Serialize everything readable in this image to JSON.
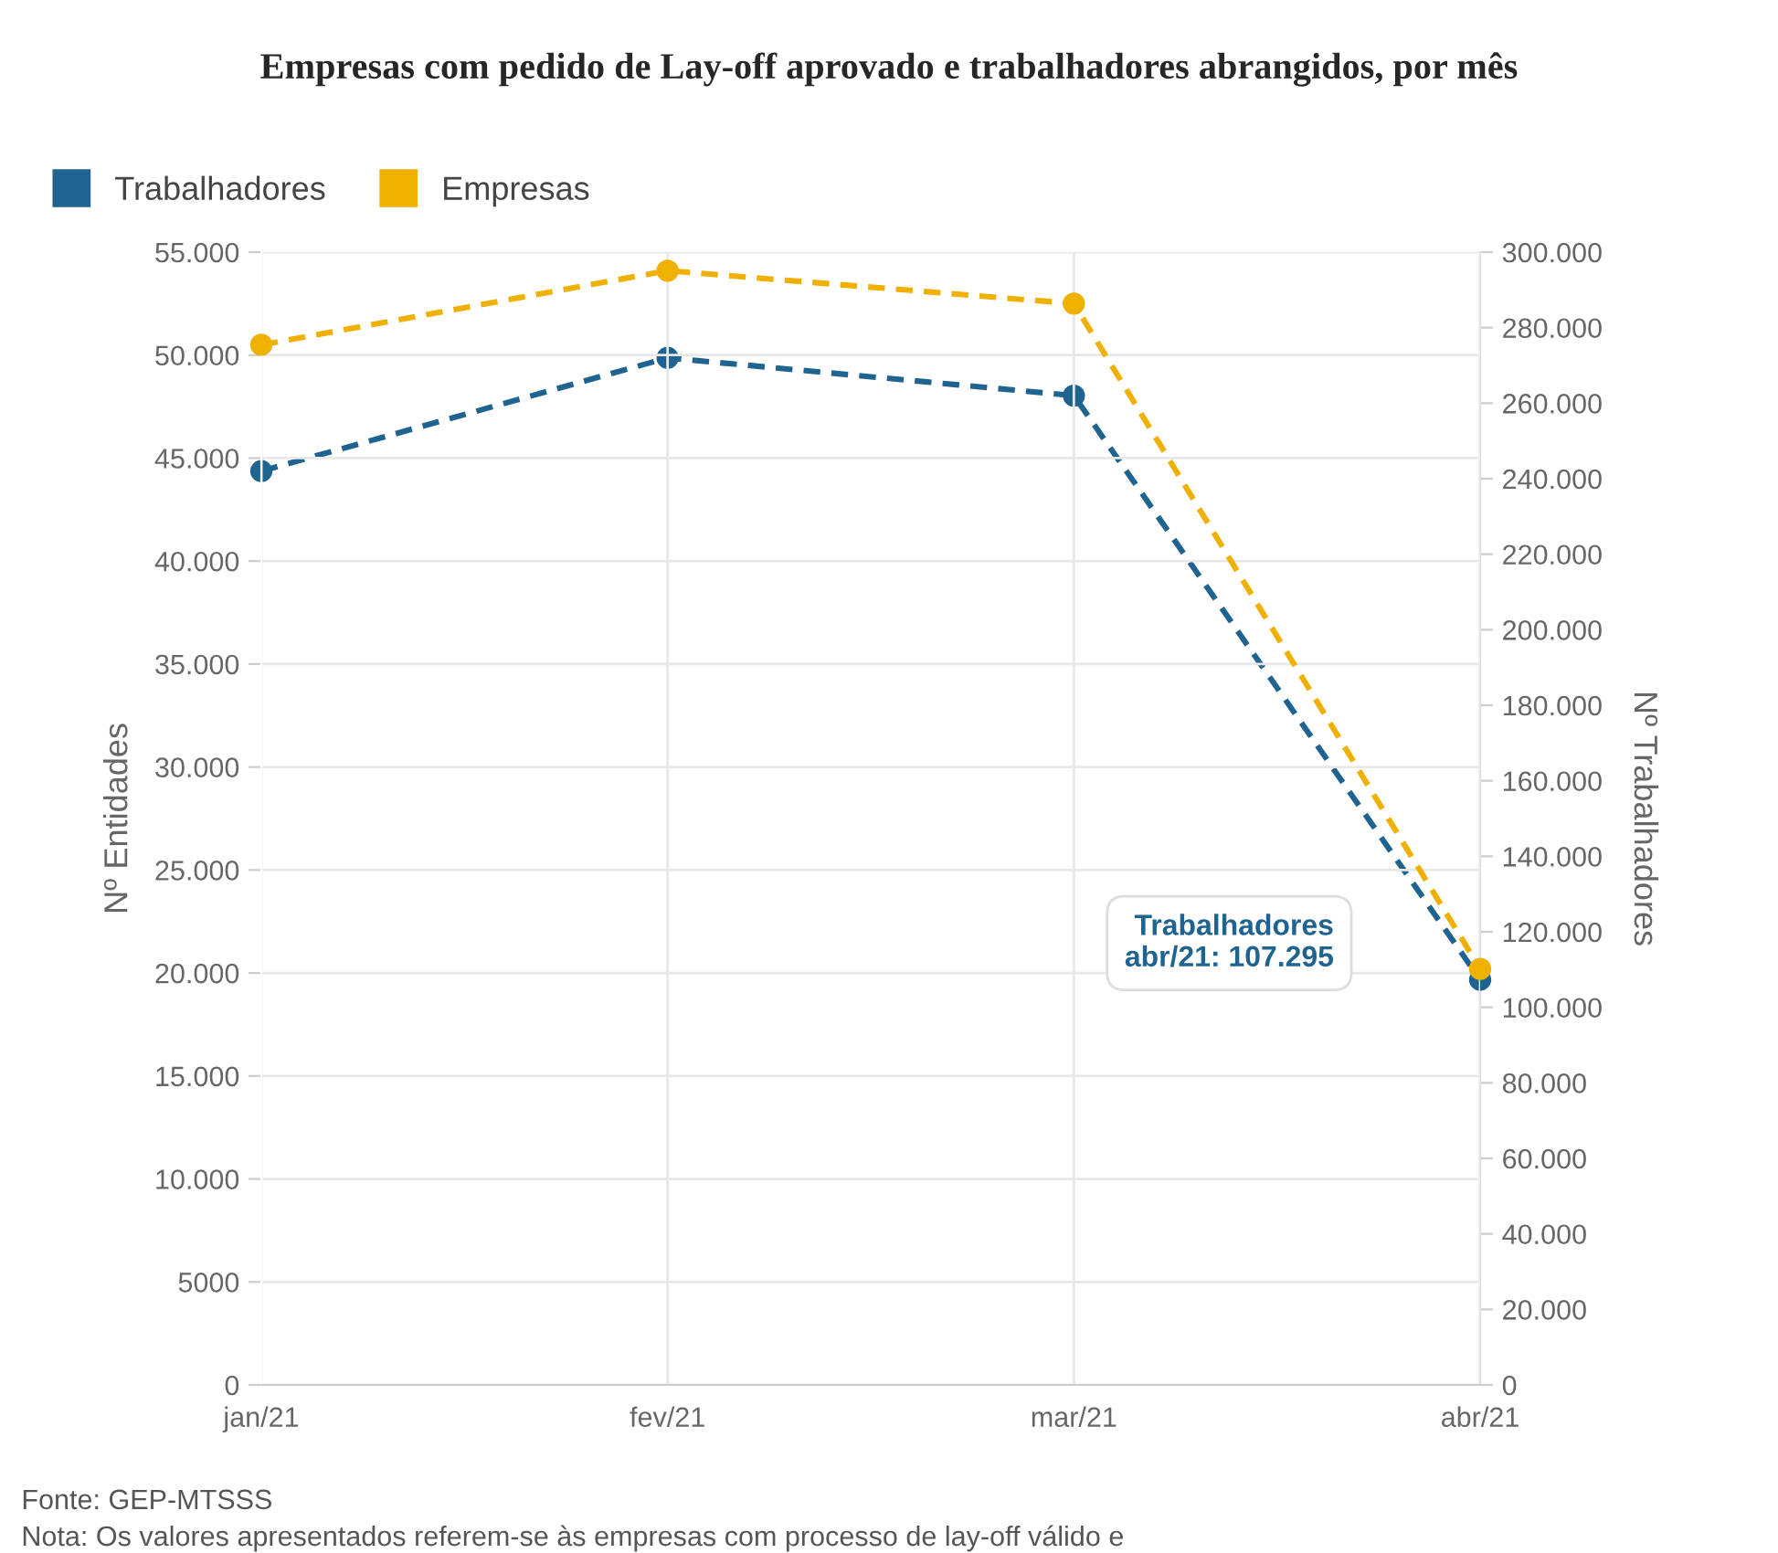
{
  "chart_data": {
    "type": "line",
    "title": "Empresas com pedido de Lay-off aprovado e trabalhadores abrangidos, por mês",
    "categories": [
      "jan/21",
      "fev/21",
      "mar/21",
      "abr/21"
    ],
    "series": [
      {
        "name": "Trabalhadores",
        "color": "#1f6391",
        "values": [
          242000,
          272000,
          262000,
          107295
        ],
        "axis": "y2"
      },
      {
        "name": "Empresas",
        "color": "#f0b000",
        "values": [
          50500,
          54100,
          52500,
          20200
        ]
      }
    ],
    "ylabel": "Nº Entidades",
    "y2label": "Nº Trabalhadores",
    "ylim": [
      0,
      55000
    ],
    "yticks": [
      0,
      {
        "value": 5000,
        "label": "5000"
      },
      {
        "value": 10000,
        "label": "10.000"
      },
      {
        "value": 15000,
        "label": "15.000"
      },
      {
        "value": 20000,
        "label": "20.000"
      },
      {
        "value": 25000,
        "label": "25.000"
      },
      {
        "value": 30000,
        "label": "30.000"
      },
      {
        "value": 35000,
        "label": "35.000"
      },
      {
        "value": 40000,
        "label": "40.000"
      },
      {
        "value": 45000,
        "label": "45.000"
      },
      {
        "value": 50000,
        "label": "50.000"
      },
      {
        "value": 55000,
        "label": "55.000"
      }
    ],
    "y2lim": [
      0,
      300000
    ],
    "y2ticks": [
      0,
      {
        "value": 20000,
        "label": "20.000"
      },
      {
        "value": 40000,
        "label": "40.000"
      },
      {
        "value": 60000,
        "label": "60.000"
      },
      {
        "value": 80000,
        "label": "80.000"
      },
      {
        "value": 100000,
        "label": "100.000"
      },
      {
        "value": 120000,
        "label": "120.000"
      },
      {
        "value": 140000,
        "label": "140.000"
      },
      {
        "value": 160000,
        "label": "160.000"
      },
      {
        "value": 180000,
        "label": "180.000"
      },
      {
        "value": 200000,
        "label": "200.000"
      },
      {
        "value": 220000,
        "label": "220.000"
      },
      {
        "value": 240000,
        "label": "240.000"
      },
      {
        "value": 260000,
        "label": "260.000"
      },
      {
        "value": 280000,
        "label": "280.000"
      },
      {
        "value": 300000,
        "label": "300.000"
      }
    ],
    "grid": true,
    "legend": "top left",
    "marker": "circle",
    "line_style": "dashed",
    "annotations": [
      "Trabalhadores\nabr/21: 107.295",
      "Fonte: GEP-MTSSS",
      "Nota: Os valores apresentados referem-se às empresas com processo de lay-off válido e"
    ]
  }
}
